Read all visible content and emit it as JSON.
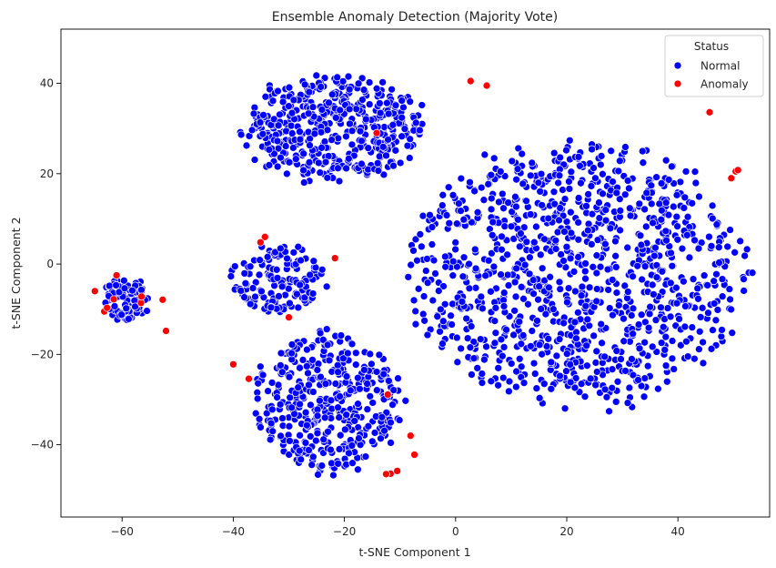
{
  "chart_data": {
    "type": "scatter",
    "title": "Ensemble Anomaly Detection (Majority Vote)",
    "xlabel": "t-SNE Component 1",
    "ylabel": "t-SNE Component 2",
    "xlim": [
      -71,
      56.5
    ],
    "ylim": [
      -56,
      52
    ],
    "xticks": [
      -60,
      -40,
      -20,
      0,
      20,
      40
    ],
    "yticks": [
      -40,
      -20,
      0,
      20,
      40
    ],
    "grid": false,
    "legend": {
      "title": "Status",
      "position": "top-right",
      "entries": [
        {
          "label": "Normal",
          "color": "#0000ff"
        },
        {
          "label": "Anomaly",
          "color": "#ff0000"
        }
      ]
    },
    "series": [
      {
        "name": "Normal",
        "color": "#0000ff",
        "clusters": [
          {
            "center": [
              -59,
              -8
            ],
            "radius": [
              4.5,
              5
            ],
            "count": 90
          },
          {
            "center": [
              -32,
              -3
            ],
            "radius": [
              9,
              8
            ],
            "count": 150
          },
          {
            "center": [
              -22,
              30
            ],
            "radius": [
              17,
              12
            ],
            "count": 480
          },
          {
            "center": [
              -23,
              -31
            ],
            "radius": [
              14,
              16
            ],
            "count": 420
          },
          {
            "center": [
              22,
              -2
            ],
            "radius": [
              31,
              30
            ],
            "count": 1100
          }
        ]
      },
      {
        "name": "Anomaly",
        "color": "#ff0000",
        "points": [
          [
            -64.9,
            -6
          ],
          [
            -63.2,
            -10.5
          ],
          [
            -62.7,
            -9.7
          ],
          [
            -61.5,
            -7.8
          ],
          [
            -61,
            -2.5
          ],
          [
            -56.6,
            -8.6
          ],
          [
            -56.5,
            -7.2
          ],
          [
            -52.7,
            -7.9
          ],
          [
            -52.1,
            -14.8
          ],
          [
            -34.3,
            6
          ],
          [
            -35.1,
            4.8
          ],
          [
            -30,
            -11.8
          ],
          [
            -21.7,
            1.3
          ],
          [
            -40,
            -22.2
          ],
          [
            -37.2,
            -25.4
          ],
          [
            -14.2,
            29
          ],
          [
            2.7,
            40.5
          ],
          [
            5.6,
            39.5
          ],
          [
            -12.2,
            -28.9
          ],
          [
            -8.1,
            -38
          ],
          [
            -10.5,
            -45.8
          ],
          [
            -11.7,
            -46.4
          ],
          [
            -12.5,
            -46.5
          ],
          [
            -7.4,
            -42.2
          ],
          [
            45.7,
            33.6
          ],
          [
            49.6,
            19
          ],
          [
            50.4,
            20.5
          ],
          [
            50.8,
            20.8
          ]
        ]
      }
    ]
  }
}
